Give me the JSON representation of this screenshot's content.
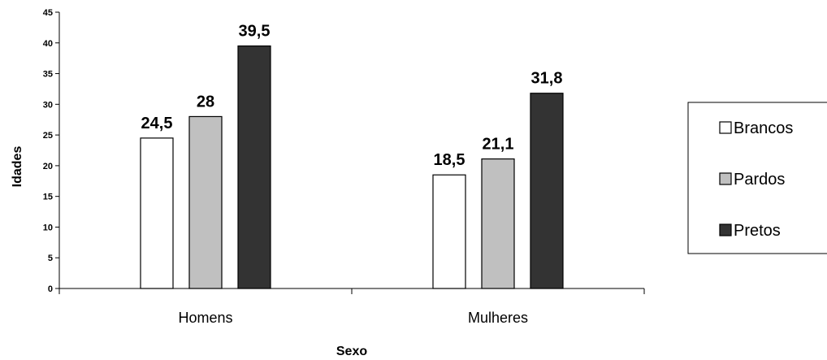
{
  "chart_data": {
    "type": "bar",
    "xlabel": "Sexo",
    "ylabel": "Idades",
    "ylim": [
      0,
      45
    ],
    "ytick_step": 5,
    "categories": [
      "Homens",
      "Mulheres"
    ],
    "series": [
      {
        "name": "Brancos",
        "values": [
          24.5,
          18.5
        ],
        "labels": [
          "24,5",
          "18,5"
        ],
        "color": "#ffffff"
      },
      {
        "name": "Pardos",
        "values": [
          28,
          21.1
        ],
        "labels": [
          "28",
          "21,1"
        ],
        "color": "#c0c0c0"
      },
      {
        "name": "Pretos",
        "values": [
          39.5,
          31.8
        ],
        "labels": [
          "39,5",
          "31,8"
        ],
        "color": "#333333"
      }
    ],
    "legend": "right",
    "grid": false
  }
}
